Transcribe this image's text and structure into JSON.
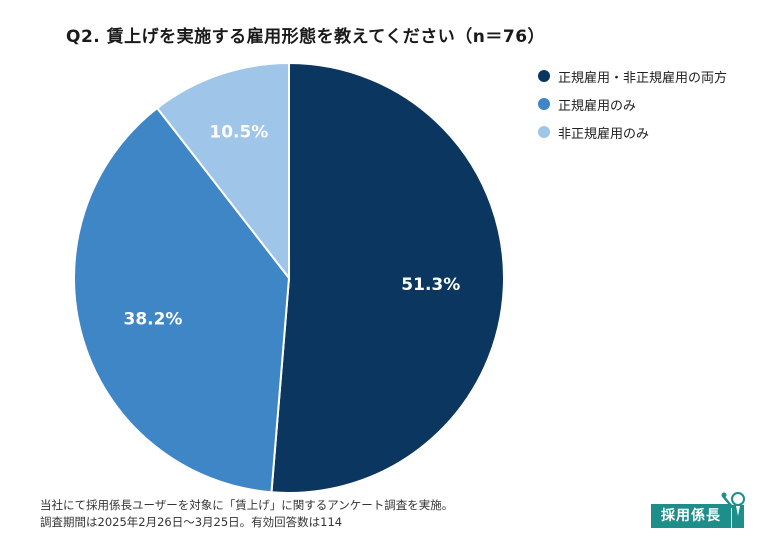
{
  "title": "Q2. 賃上げを実施する雇用形態を教えてください（n＝76）",
  "chart_data": {
    "type": "pie",
    "title": "Q2. 賃上げを実施する雇用形態を教えてください（n＝76）",
    "n": 76,
    "slices": [
      {
        "name": "正規雇用・非正規雇用の両方",
        "value": 51.3,
        "label": "51.3%",
        "color": "#0b365f"
      },
      {
        "name": "正規雇用のみ",
        "value": 38.2,
        "label": "38.2%",
        "color": "#3f86c7"
      },
      {
        "name": "非正規雇用のみ",
        "value": 10.5,
        "label": "10.5%",
        "color": "#9fc5e8"
      }
    ],
    "legend_position": "top-right"
  },
  "footnote": {
    "line1": "当社にて採用係長ユーザーを対象に「賃上げ」に関するアンケート調査を実施。",
    "line2": "調査期間は2025年2月26日〜3月25日。有効回答数は114"
  },
  "logo": {
    "text": "採用係長"
  }
}
